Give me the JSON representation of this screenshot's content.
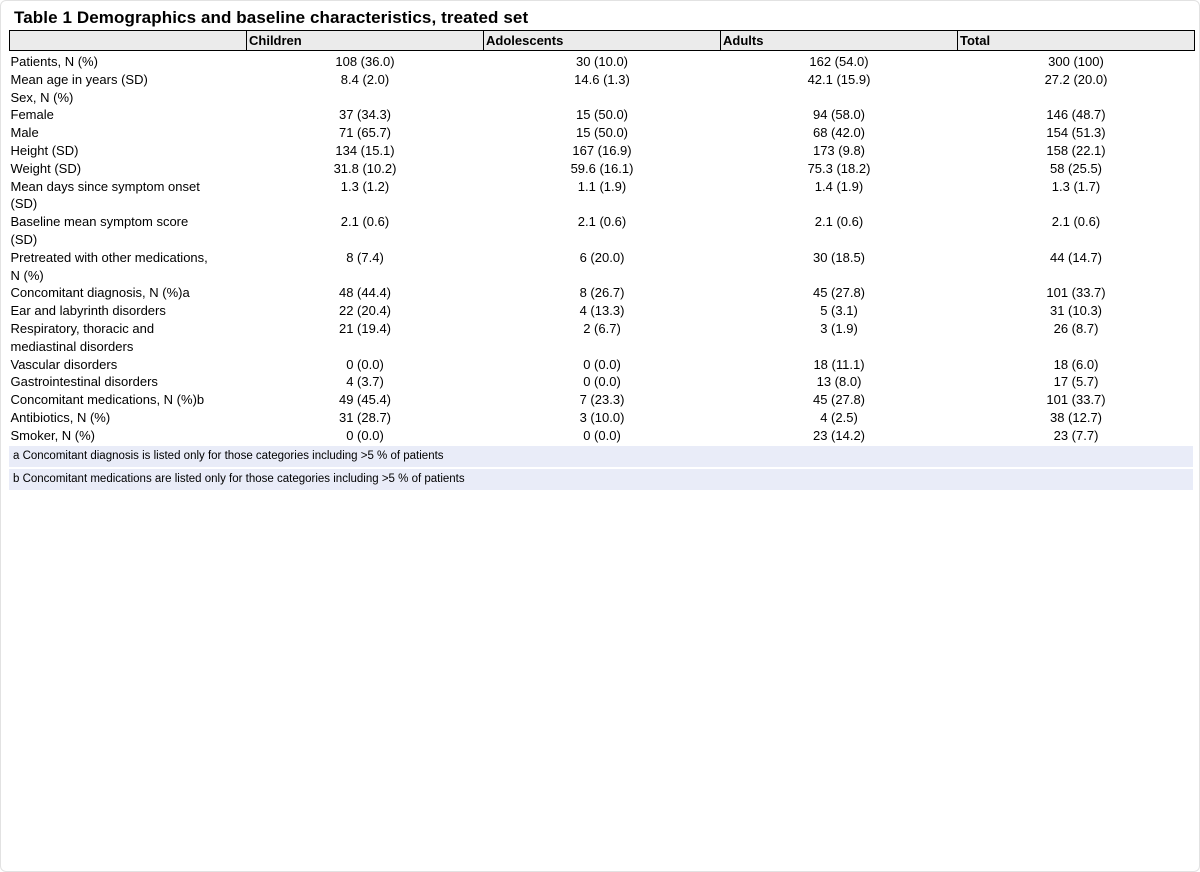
{
  "title": "Table 1 Demographics and baseline characteristics, treated set",
  "table": {
    "columns": [
      "",
      "Children",
      "Adolescents",
      "Adults",
      "Total"
    ],
    "rows": [
      {
        "label": "Patients, N (%)",
        "values": [
          "108 (36.0)",
          "30 (10.0)",
          "162 (54.0)",
          "300 (100)"
        ]
      },
      {
        "label": "Mean age in years (SD)",
        "values": [
          "8.4 (2.0)",
          "14.6 (1.3)",
          "42.1 (15.9)",
          "27.2 (20.0)"
        ]
      },
      {
        "label": "Sex, N (%)",
        "values": [
          "",
          "",
          "",
          ""
        ]
      },
      {
        "label": "Female",
        "values": [
          "37 (34.3)",
          "15 (50.0)",
          "94 (58.0)",
          "146 (48.7)"
        ]
      },
      {
        "label": "Male",
        "values": [
          "71 (65.7)",
          "15 (50.0)",
          "68 (42.0)",
          "154 (51.3)"
        ]
      },
      {
        "label": "Height (SD)",
        "values": [
          "134 (15.1)",
          "167 (16.9)",
          "173 (9.8)",
          "158 (22.1)"
        ]
      },
      {
        "label": "Weight (SD)",
        "values": [
          "31.8 (10.2)",
          "59.6 (16.1)",
          "75.3 (18.2)",
          "58 (25.5)"
        ]
      },
      {
        "label": "Mean days since symptom onset\n(SD)",
        "values": [
          "1.3 (1.2)",
          "1.1 (1.9)",
          "1.4 (1.9)",
          "1.3 (1.7)"
        ]
      },
      {
        "label": "Baseline mean symptom score\n(SD)",
        "values": [
          "2.1 (0.6)",
          "2.1 (0.6)",
          "2.1 (0.6)",
          "2.1 (0.6)"
        ]
      },
      {
        "label": "Pretreated with other medications,\nN (%)",
        "values": [
          "8 (7.4)",
          "6 (20.0)",
          "30 (18.5)",
          "44 (14.7)"
        ]
      },
      {
        "label": "Concomitant diagnosis, N (%)a",
        "values": [
          "48 (44.4)",
          "8 (26.7)",
          "45 (27.8)",
          "101 (33.7)"
        ]
      },
      {
        "label": "Ear and labyrinth disorders",
        "values": [
          "22 (20.4)",
          "4 (13.3)",
          "5 (3.1)",
          "31 (10.3)"
        ]
      },
      {
        "label": "Respiratory, thoracic and\nmediastinal disorders",
        "values": [
          "21 (19.4)",
          "2 (6.7)",
          "3 (1.9)",
          "26 (8.7)"
        ]
      },
      {
        "label": "Vascular disorders",
        "values": [
          "0 (0.0)",
          "0 (0.0)",
          "18 (11.1)",
          "18 (6.0)"
        ]
      },
      {
        "label": "Gastrointestinal disorders",
        "values": [
          "4 (3.7)",
          "0 (0.0)",
          "13 (8.0)",
          "17 (5.7)"
        ]
      },
      {
        "label": "Concomitant medications, N (%)b",
        "values": [
          "49 (45.4)",
          "7 (23.3)",
          "45 (27.8)",
          "101 (33.7)"
        ]
      },
      {
        "label": "Antibiotics, N (%)",
        "values": [
          "31 (28.7)",
          "3 (10.0)",
          "4 (2.5)",
          "38 (12.7)"
        ]
      },
      {
        "label": "Smoker, N (%)",
        "values": [
          "0 (0.0)",
          "0 (0.0)",
          "23 (14.2)",
          "23 (7.7)"
        ]
      }
    ]
  },
  "footnotes": [
    "a Concomitant diagnosis is listed only for those categories including >5 % of patients",
    "b Concomitant medications are listed only for those categories including >5 % of patients"
  ],
  "colors": {
    "header_bg": "#ebebeb",
    "footnote_bg": "#e9ecf8",
    "border": "#000000",
    "text": "#000000"
  }
}
